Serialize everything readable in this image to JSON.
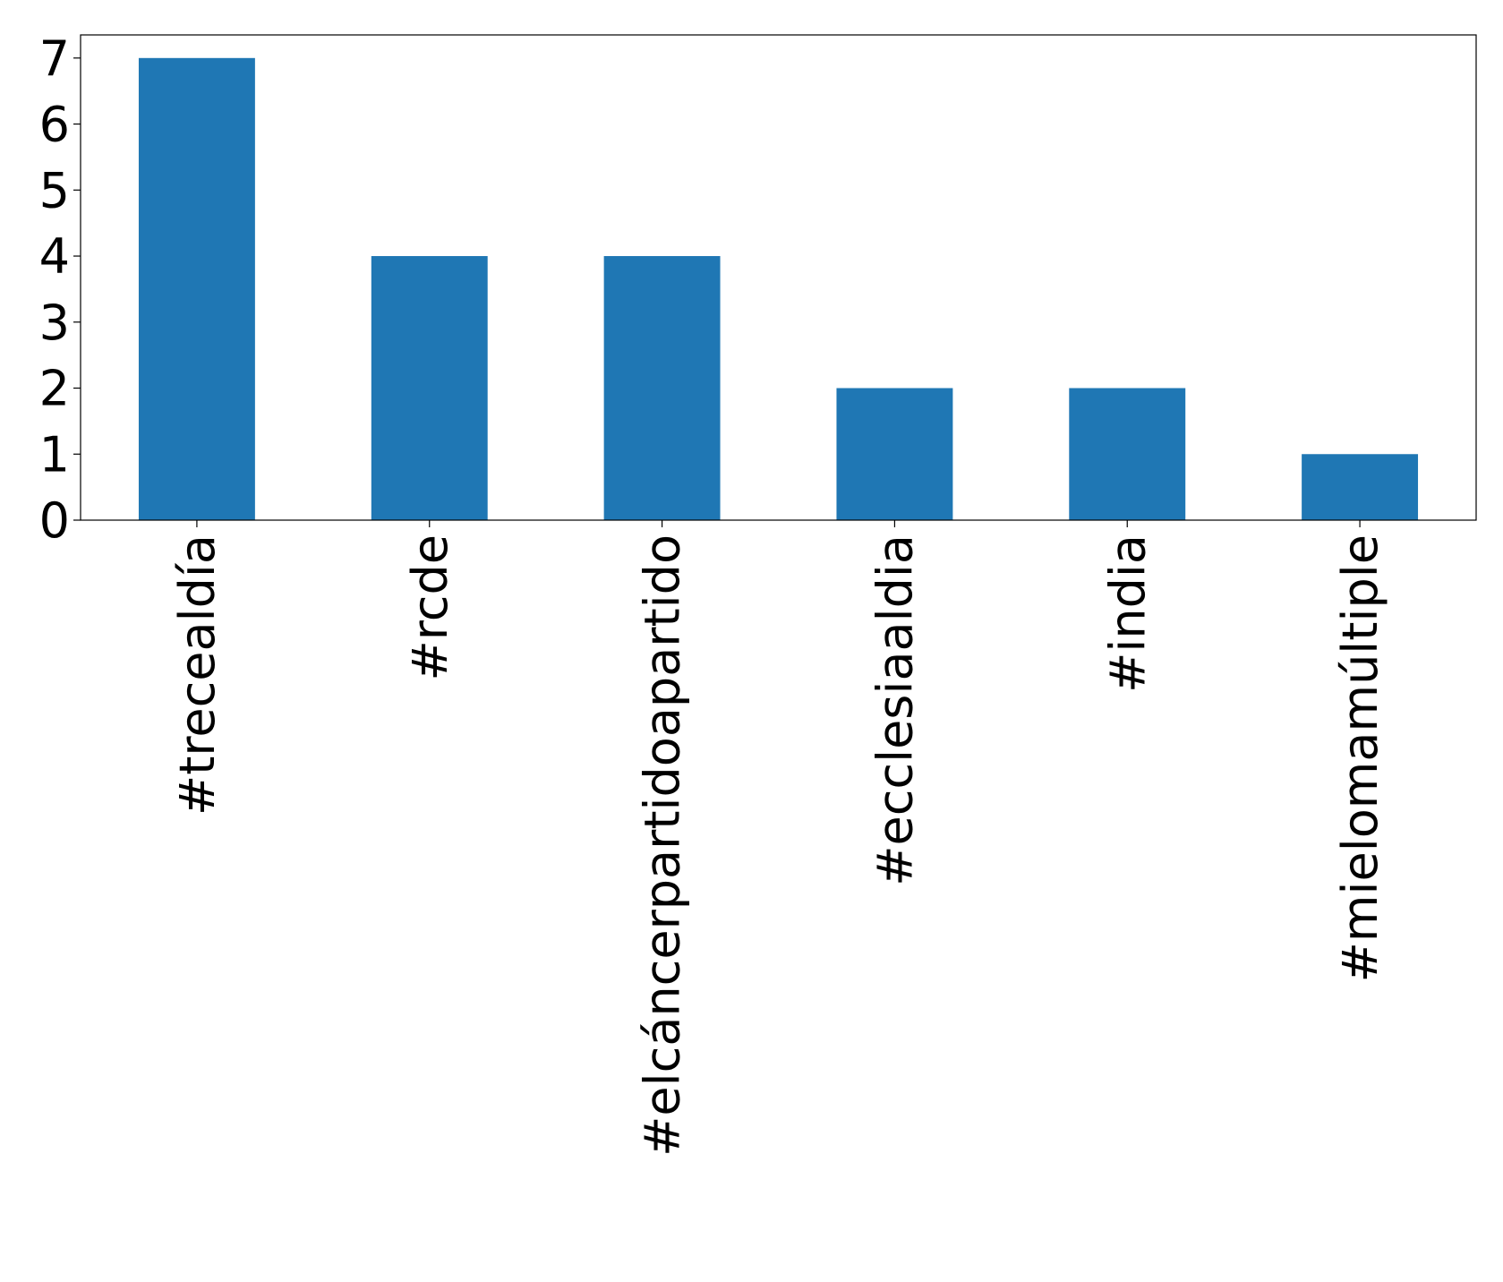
{
  "chart_data": {
    "type": "bar",
    "categories": [
      "#trecealdía",
      "#rcde",
      "#elcáncerpartidoapartido",
      "#ecclesiaaldia",
      "#india",
      "#mielomamúltiple"
    ],
    "values": [
      7,
      4,
      4,
      2,
      2,
      1
    ],
    "color": "#1f77b4",
    "ylim": [
      0,
      7.35
    ],
    "yticks": [
      0,
      1,
      2,
      3,
      4,
      5,
      6,
      7
    ],
    "grid": false
  }
}
